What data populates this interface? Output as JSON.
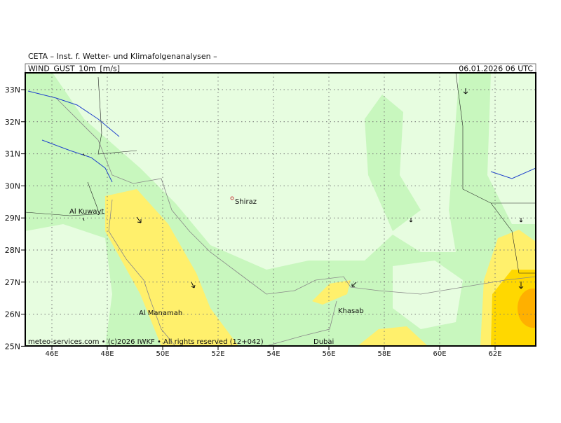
{
  "header": {
    "institute": "CETA – Inst. f. Wetter- und Klimafolgenanalysen –",
    "field": "WIND_GUST_10m_[m/s]",
    "valid_time": "06.01.2026 06 UTC"
  },
  "axes": {
    "latitude_labels": [
      "33N",
      "32N",
      "31N",
      "30N",
      "29N",
      "28N",
      "27N",
      "26N",
      "25N"
    ],
    "longitude_labels": [
      "46E",
      "48E",
      "50E",
      "52E",
      "54E",
      "56E",
      "58E",
      "60E",
      "62E"
    ]
  },
  "places": [
    {
      "label": "Shiraz"
    },
    {
      "label": "Al Kuwayt"
    },
    {
      "label": "Al Manamah"
    },
    {
      "label": "Khasab"
    },
    {
      "label": "Dubai"
    }
  ],
  "footer": "meteo-services.com • (c)2026 IWKF • All rights reserved (12+042)"
}
